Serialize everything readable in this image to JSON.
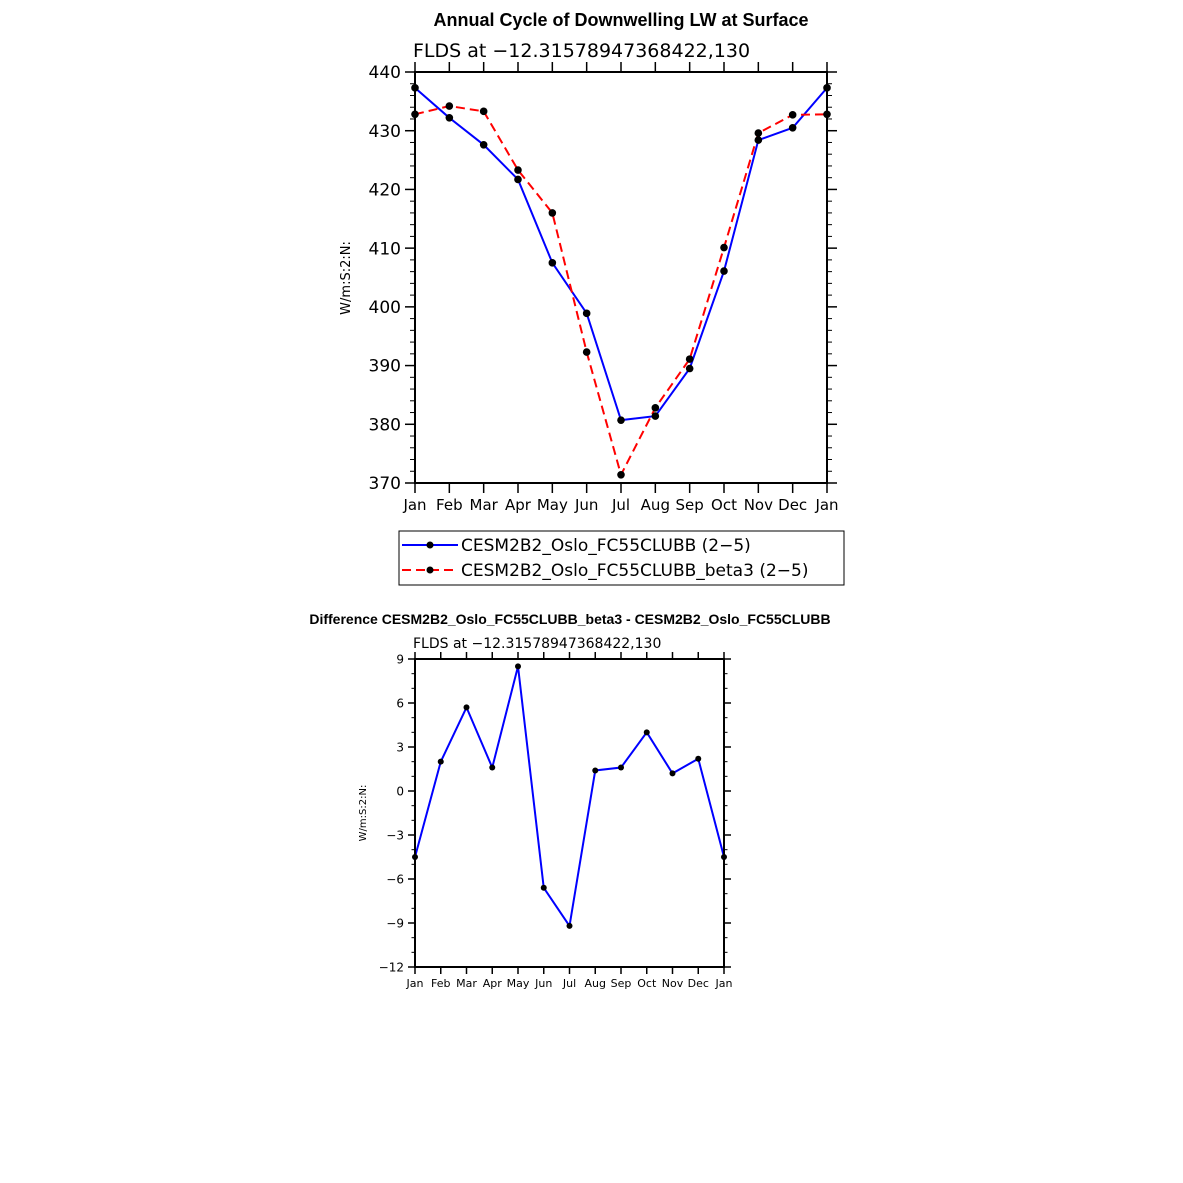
{
  "chart_data": [
    {
      "type": "line",
      "title": "Annual Cycle of Downwelling LW at Surface",
      "subtitle": "FLDS at −12.31578947368422,130",
      "xlabel": "",
      "ylabel": "W/m:S:2:N:",
      "categories": [
        "Jan",
        "Feb",
        "Mar",
        "Apr",
        "May",
        "Jun",
        "Jul",
        "Aug",
        "Sep",
        "Oct",
        "Nov",
        "Dec",
        "Jan"
      ],
      "ylim": [
        370,
        440
      ],
      "yticks": [
        "370",
        "380",
        "390",
        "400",
        "410",
        "420",
        "430",
        "440"
      ],
      "series": [
        {
          "name": "CESM2B2_Oslo_FC55CLUBB (2−5)",
          "color": "#0000ff",
          "dash": "solid",
          "values": [
            437.3,
            432.2,
            427.6,
            421.7,
            407.5,
            398.9,
            380.7,
            381.4,
            389.5,
            406.1,
            428.4,
            430.5,
            437.3
          ]
        },
        {
          "name": "CESM2B2_Oslo_FC55CLUBB_beta3 (2−5)",
          "color": "#ff0000",
          "dash": "dashed",
          "values": [
            432.8,
            434.2,
            433.3,
            423.3,
            416.0,
            392.3,
            371.4,
            382.8,
            391.1,
            410.1,
            429.6,
            432.7,
            432.8
          ]
        }
      ],
      "legend": "below"
    },
    {
      "type": "line",
      "title": "Difference CESM2B2_Oslo_FC55CLUBB_beta3 - CESM2B2_Oslo_FC55CLUBB",
      "subtitle": "FLDS at −12.31578947368422,130",
      "xlabel": "",
      "ylabel": "W/m:S:2:N:",
      "categories": [
        "Jan",
        "Feb",
        "Mar",
        "Apr",
        "May",
        "Jun",
        "Jul",
        "Aug",
        "Sep",
        "Oct",
        "Nov",
        "Dec",
        "Jan"
      ],
      "ylim": [
        -12,
        9
      ],
      "yticks": [
        "−12",
        "−9",
        "−6",
        "−3",
        "0",
        "3",
        "6",
        "9"
      ],
      "series": [
        {
          "name": "Difference",
          "color": "#0000ff",
          "dash": "solid",
          "values": [
            -4.5,
            2.0,
            5.7,
            1.6,
            8.5,
            -6.6,
            -9.2,
            1.4,
            1.6,
            4.0,
            1.2,
            2.2,
            -4.5
          ]
        }
      ]
    }
  ]
}
